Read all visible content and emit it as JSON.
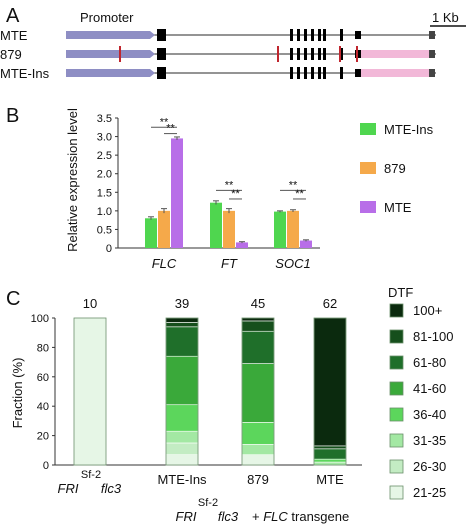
{
  "panel_a": {
    "letter": "A",
    "promoter_label": "Promoter",
    "scale_label": "1 Kb",
    "rows": [
      {
        "label": "MTE",
        "red_marks": 0,
        "insert": false
      },
      {
        "label": "879",
        "red_marks": 4,
        "insert": true
      },
      {
        "label": "MTE-Ins",
        "red_marks": 0,
        "insert": true
      }
    ],
    "colors": {
      "promoter": "#8e8ec4",
      "exon": "#000000",
      "mark": "#c0262e",
      "insert": "#f2b8d8",
      "line": "#555555"
    }
  },
  "chart_data": [
    {
      "type": "bar",
      "panel": "B",
      "categories": [
        "FLC",
        "FT",
        "SOC1"
      ],
      "ylabel": "Relative expression level",
      "ylim": [
        0,
        3.5
      ],
      "yticks": [
        "0",
        "0.5",
        "1.0",
        "1.5",
        "2.0",
        "2.5",
        "3.0",
        "3.5"
      ],
      "series": [
        {
          "name": "MTE-Ins",
          "color": "#4fd64f",
          "values": [
            0.8,
            1.22,
            0.98
          ],
          "errors": [
            0.04,
            0.05,
            0.02
          ]
        },
        {
          "name": "879",
          "color": "#f5a94a",
          "values": [
            1.0,
            1.0,
            1.0
          ],
          "errors": [
            0.06,
            0.06,
            0.03
          ]
        },
        {
          "name": "MTE",
          "color": "#b86ee8",
          "values": [
            2.95,
            0.15,
            0.2
          ],
          "errors": [
            0.04,
            0.02,
            0.02
          ]
        }
      ],
      "significance": "**",
      "legend_position": "right"
    },
    {
      "type": "bar",
      "stacked": true,
      "panel": "C",
      "ylabel": "Fraction (%)",
      "ylim": [
        0,
        100
      ],
      "yticks": [
        "0",
        "20",
        "40",
        "60",
        "80",
        "100"
      ],
      "counts": [
        "10",
        "39",
        "45",
        "62"
      ],
      "legend_title": "DTF",
      "legend_position": "right",
      "series": [
        {
          "name": "21-25",
          "color": "#e6f6e6",
          "values": [
            100,
            7,
            7,
            0
          ]
        },
        {
          "name": "26-30",
          "color": "#c3ecc3",
          "values": [
            0,
            8,
            0,
            0
          ]
        },
        {
          "name": "31-35",
          "color": "#a3e8a3",
          "values": [
            0,
            8,
            7,
            2
          ]
        },
        {
          "name": "36-40",
          "color": "#5cd65c",
          "values": [
            0,
            18,
            15,
            2
          ]
        },
        {
          "name": "41-60",
          "color": "#3aa93a",
          "values": [
            0,
            33,
            40,
            0
          ]
        },
        {
          "name": "61-80",
          "color": "#1f6f2a",
          "values": [
            0,
            20,
            22,
            7
          ]
        },
        {
          "name": "81-100",
          "color": "#164f1c",
          "values": [
            0,
            3,
            7,
            2
          ]
        },
        {
          "name": "100+",
          "color": "#0b2a0e",
          "values": [
            0,
            3,
            2,
            87
          ]
        }
      ],
      "x_labels": [
        {
          "prefix": "",
          "main": "",
          "sup": "Sf-2",
          "fri": "FRI",
          "flc": "flc3"
        },
        {
          "main": "MTE-Ins"
        },
        {
          "main": "879"
        },
        {
          "main": "MTE"
        }
      ],
      "group_label": {
        "fri": "FRI",
        "sup": "Sf-2",
        "flc": "flc3",
        "rest": "+ FLC transgene"
      }
    }
  ],
  "labels": {
    "b_letter": "B",
    "c_letter": "C",
    "sig": "**"
  }
}
